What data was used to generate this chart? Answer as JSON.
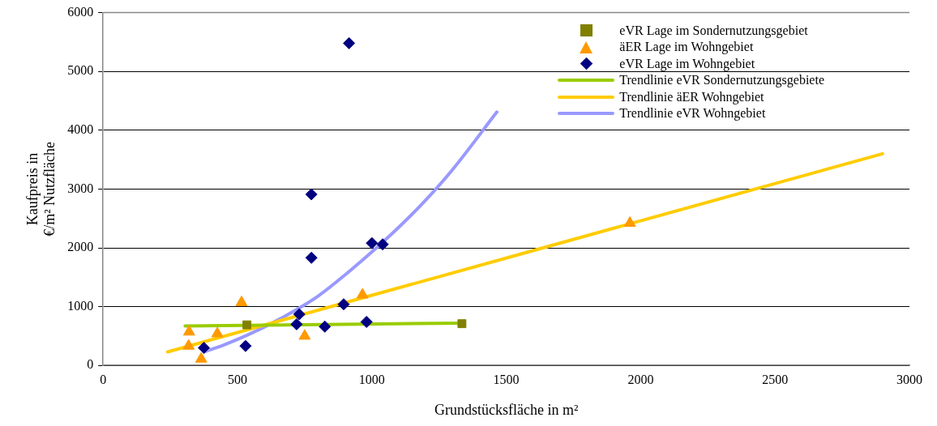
{
  "chart_data": {
    "type": "scatter",
    "xlabel": "Grundstücksfläche in m²",
    "ylabel": "Kaufpreis in\n€/m² Nutzfläche",
    "xlim": [
      0,
      3000
    ],
    "xticks": [
      0,
      500,
      1000,
      1500,
      2000,
      2500,
      3000
    ],
    "ylim": [
      0,
      6000
    ],
    "yticks": [
      0,
      1000,
      2000,
      3000,
      4000,
      5000,
      6000
    ],
    "grid": "y",
    "legend": "top right",
    "series": [
      {
        "name": "eVR Lage im Sondernutzungsgebiet",
        "marker": "square",
        "color": "#808000",
        "x": [
          535,
          1335
        ],
        "values": [
          690,
          710
        ]
      },
      {
        "name": "äER Lage im Wohngebiet",
        "marker": "triangle",
        "color": "#ff9900",
        "x": [
          320,
          318,
          365,
          425,
          515,
          750,
          965,
          1960
        ],
        "values": [
          570,
          330,
          110,
          540,
          1070,
          500,
          1200,
          2420
        ]
      },
      {
        "name": "eVR Lage im Wohngebiet",
        "marker": "diamond",
        "color": "#000080",
        "x": [
          375,
          530,
          775,
          720,
          730,
          825,
          895,
          980,
          1000,
          1040,
          915,
          775
        ],
        "values": [
          300,
          330,
          1830,
          700,
          870,
          660,
          1040,
          740,
          2080,
          2060,
          5480,
          2910
        ]
      },
      {
        "name": "Trendlinie eVR Sondernutzungsgebiete",
        "type": "line",
        "marker": "none",
        "color": "#99cc00",
        "x": [
          305,
          1335
        ],
        "values": [
          670,
          720
        ]
      },
      {
        "name": "Trendlinie äER Wohngebiet",
        "type": "line",
        "marker": "none",
        "color": "#ffcc00",
        "x": [
          240,
          2900
        ],
        "values": [
          230,
          3600
        ]
      },
      {
        "name": "Trendlinie eVR Wohngebiet",
        "type": "line",
        "marker": "none",
        "color": "#9999ff",
        "x": [
          376,
          450,
          534,
          620,
          716,
          800,
          916,
          1000,
          1098,
          1200,
          1300,
          1465
        ],
        "values": [
          230,
          350,
          510,
          700,
          940,
          1180,
          1600,
          1930,
          2340,
          2810,
          3330,
          4310
        ]
      }
    ]
  }
}
